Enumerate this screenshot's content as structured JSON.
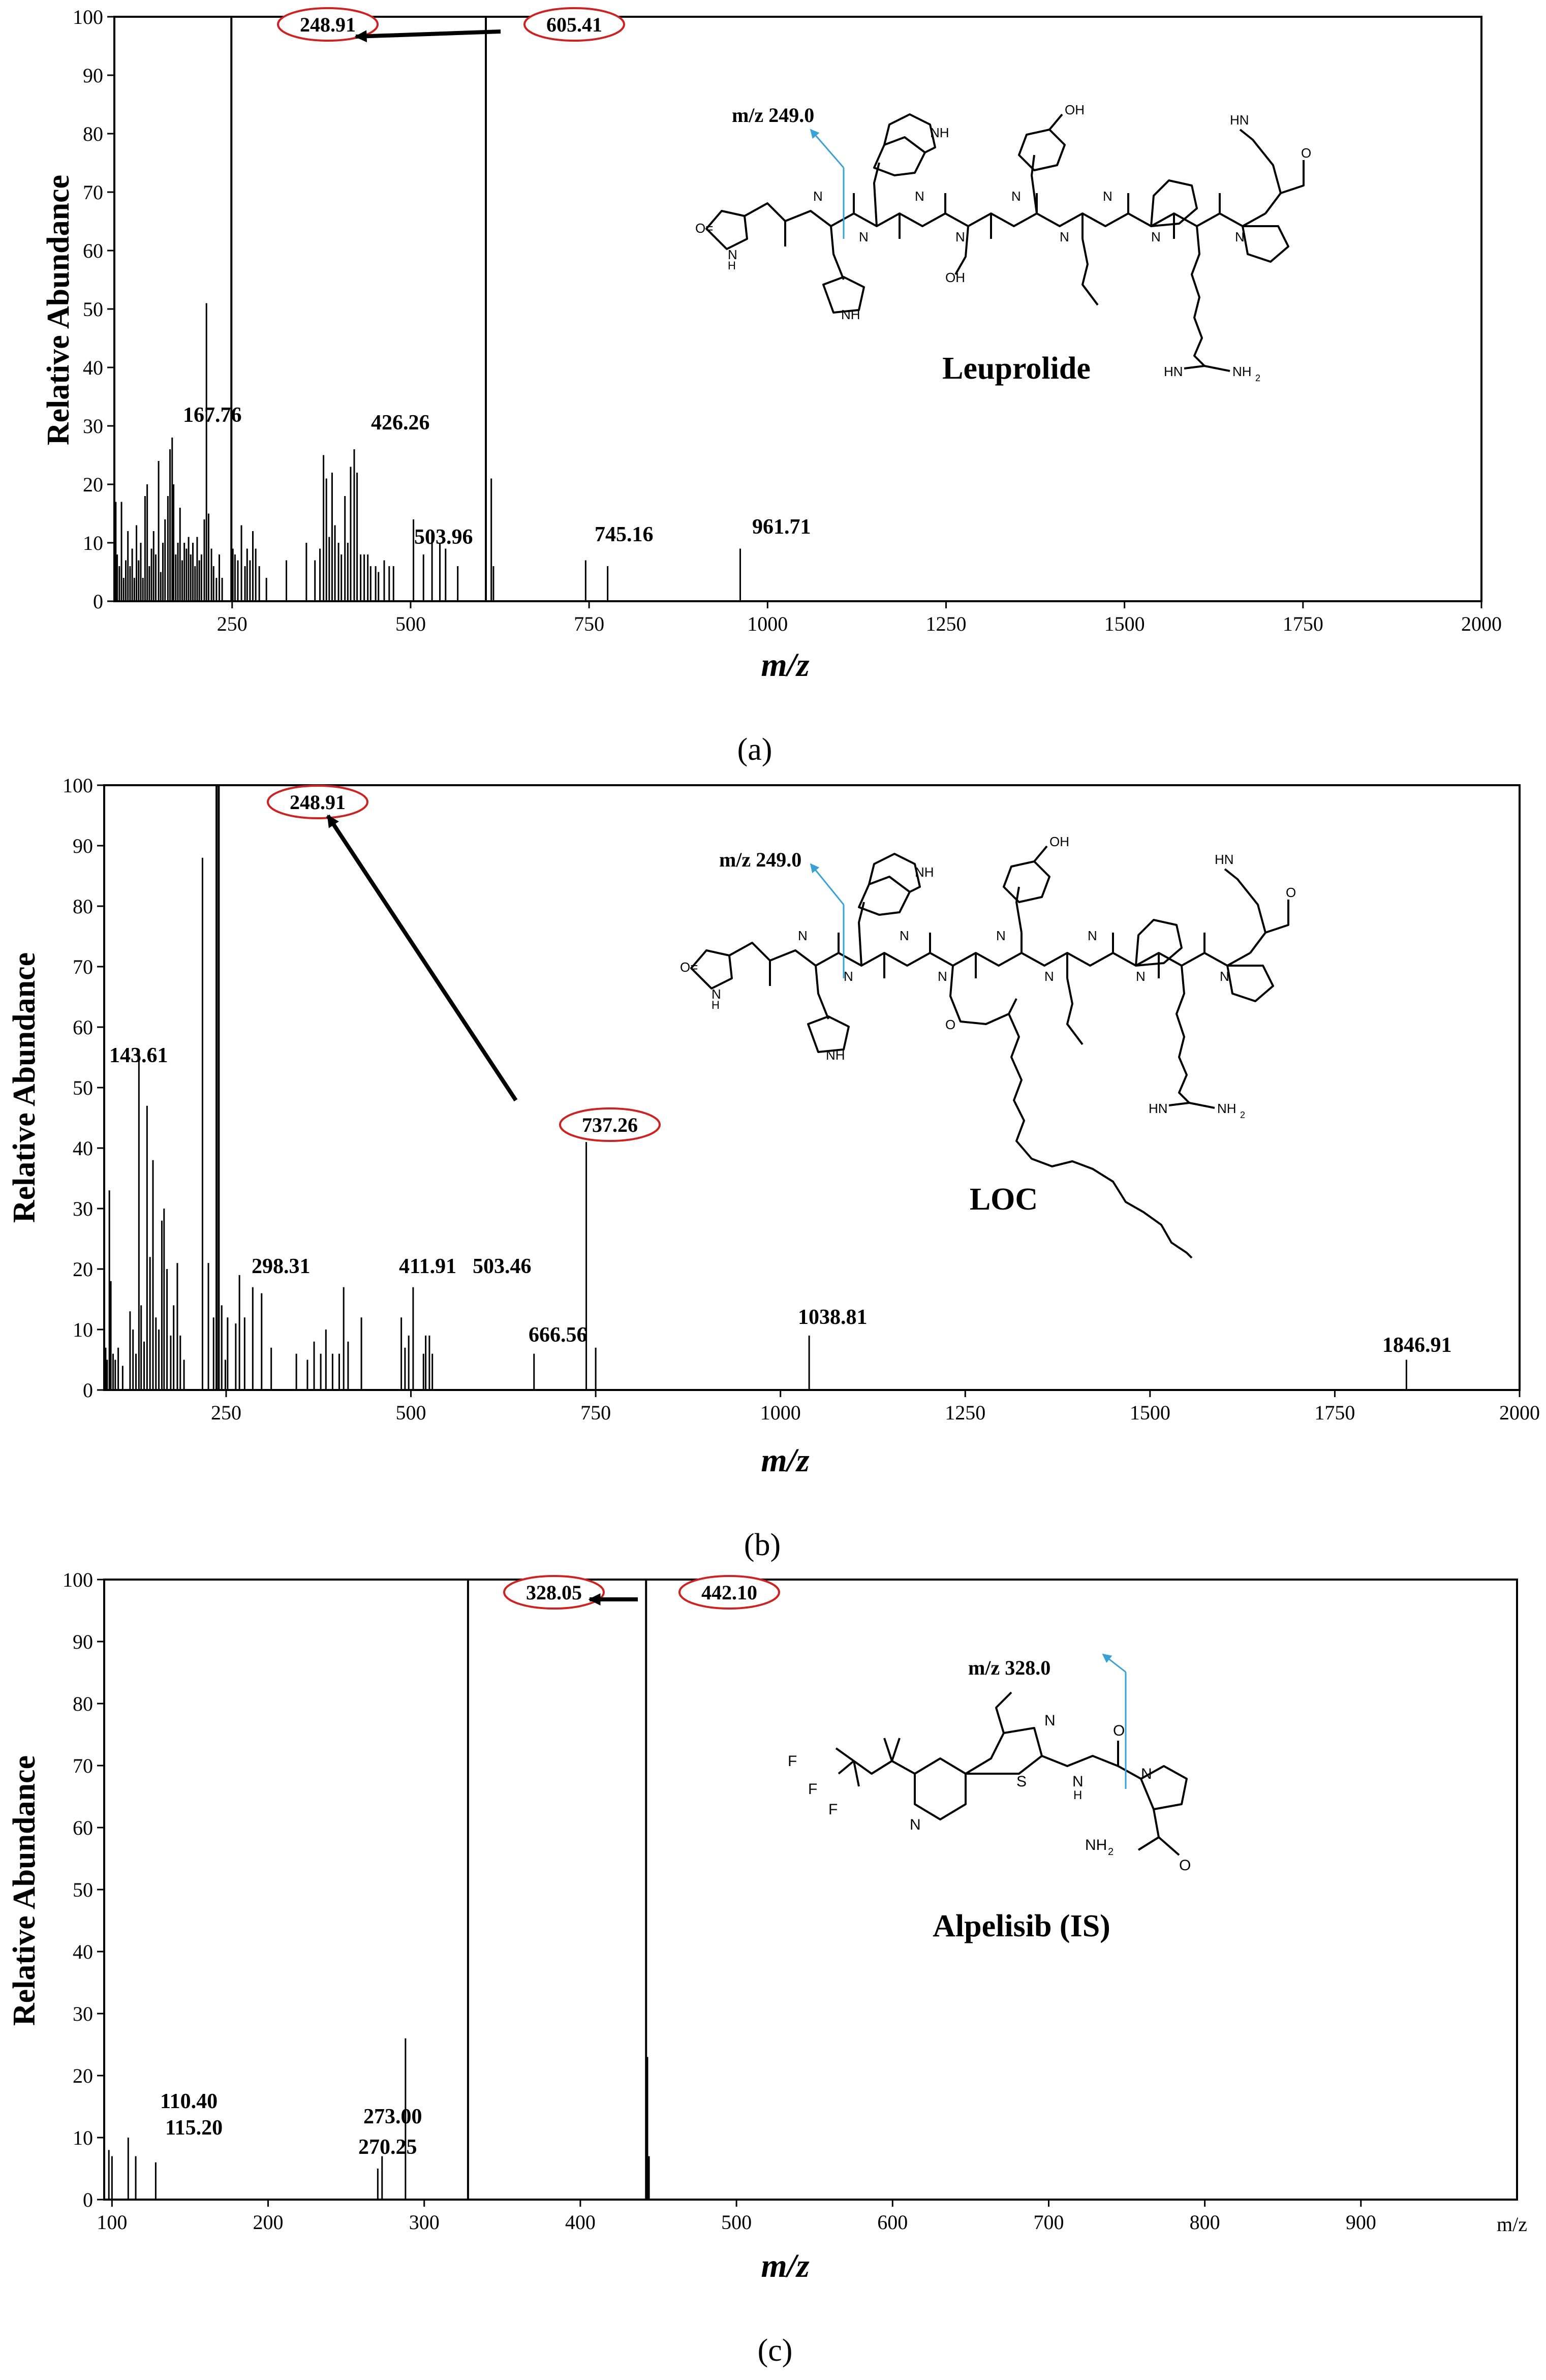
{
  "figure": {
    "panels": [
      {
        "id": "a",
        "caption": "(a)",
        "compound": "Leuprolide",
        "fragment_label": "m/z 249.0"
      },
      {
        "id": "b",
        "caption": "(b)",
        "compound": "LOC",
        "fragment_label": "m/z 249.0"
      },
      {
        "id": "c",
        "caption": "(c)",
        "compound": "Alpelisib (IS)",
        "fragment_label": "m/z 328.0",
        "axis_unit_label": "m/z"
      }
    ]
  },
  "colors": {
    "ink": "#000000",
    "highlight": "#cc2222",
    "fragment_arrow": "#3aa0d8"
  },
  "chart_data": [
    {
      "type": "bar",
      "panel": "a",
      "xlabel": "m/z",
      "ylabel": "Relative Abundance",
      "xlim": [
        85,
        2000
      ],
      "ylim": [
        0,
        100
      ],
      "xticks": [
        250,
        500,
        750,
        1000,
        1250,
        1500,
        1750,
        2000
      ],
      "yticks": [
        0,
        10,
        20,
        30,
        40,
        50,
        60,
        70,
        80,
        90,
        100
      ],
      "peaks": [
        [
          87,
          17
        ],
        [
          89,
          8
        ],
        [
          92,
          6
        ],
        [
          95,
          17
        ],
        [
          98,
          4
        ],
        [
          101,
          7
        ],
        [
          104,
          12
        ],
        [
          107,
          6
        ],
        [
          110,
          9
        ],
        [
          113,
          4
        ],
        [
          116,
          13
        ],
        [
          119,
          7
        ],
        [
          122,
          10
        ],
        [
          125,
          4
        ],
        [
          128,
          18
        ],
        [
          131,
          20
        ],
        [
          134,
          6
        ],
        [
          137,
          9
        ],
        [
          140,
          12
        ],
        [
          143,
          8
        ],
        [
          147,
          24
        ],
        [
          150,
          5
        ],
        [
          153,
          10
        ],
        [
          156,
          14
        ],
        [
          160,
          18
        ],
        [
          163,
          26
        ],
        [
          166,
          28
        ],
        [
          168,
          20
        ],
        [
          171,
          8
        ],
        [
          174,
          10
        ],
        [
          177,
          16
        ],
        [
          180,
          7
        ],
        [
          183,
          10
        ],
        [
          186,
          9
        ],
        [
          189,
          11
        ],
        [
          192,
          8
        ],
        [
          195,
          10
        ],
        [
          198,
          6
        ],
        [
          201,
          11
        ],
        [
          204,
          7
        ],
        [
          207,
          8
        ],
        [
          211,
          14
        ],
        [
          214,
          51
        ],
        [
          217,
          15
        ],
        [
          221,
          9
        ],
        [
          224,
          6
        ],
        [
          228,
          4
        ],
        [
          232,
          8
        ],
        [
          236,
          4
        ],
        [
          248.91,
          100
        ],
        [
          251,
          9
        ],
        [
          254,
          8
        ],
        [
          258,
          7
        ],
        [
          263,
          13
        ],
        [
          268,
          6
        ],
        [
          271,
          9
        ],
        [
          275,
          7
        ],
        [
          279,
          12
        ],
        [
          283,
          9
        ],
        [
          288,
          6
        ],
        [
          298,
          4
        ],
        [
          326,
          7
        ],
        [
          354,
          10
        ],
        [
          366,
          7
        ],
        [
          373,
          9
        ],
        [
          378,
          25
        ],
        [
          382,
          21
        ],
        [
          386,
          11
        ],
        [
          390,
          22
        ],
        [
          394,
          13
        ],
        [
          399,
          10
        ],
        [
          403,
          8
        ],
        [
          408,
          18
        ],
        [
          412,
          10
        ],
        [
          416,
          23
        ],
        [
          421,
          26
        ],
        [
          425,
          22
        ],
        [
          430,
          8
        ],
        [
          435,
          8
        ],
        [
          440,
          8
        ],
        [
          444,
          6
        ],
        [
          451,
          6
        ],
        [
          455,
          5
        ],
        [
          463,
          7
        ],
        [
          470,
          6
        ],
        [
          476,
          6
        ],
        [
          504,
          14
        ],
        [
          518,
          8
        ],
        [
          530,
          12
        ],
        [
          541,
          10
        ],
        [
          549,
          9
        ],
        [
          566,
          6
        ],
        [
          605.41,
          100
        ],
        [
          613,
          21
        ],
        [
          616,
          6
        ],
        [
          745.16,
          7
        ],
        [
          776,
          6
        ],
        [
          961.71,
          9
        ]
      ],
      "labeled_peaks": [
        {
          "mz": 167.76,
          "label": "167.76"
        },
        {
          "mz": 426.26,
          "label": "426.26"
        },
        {
          "mz": 503.96,
          "label": "503.96"
        },
        {
          "mz": 745.16,
          "label": "745.16"
        },
        {
          "mz": 961.71,
          "label": "961.71"
        }
      ],
      "highlighted_peaks": [
        {
          "mz": 248.91,
          "label": "248.91"
        },
        {
          "mz": 605.41,
          "label": "605.41"
        }
      ],
      "transition": {
        "from": "605.41",
        "to": "248.91"
      }
    },
    {
      "type": "bar",
      "panel": "b",
      "xlabel": "m/z",
      "ylabel": "Relative Abundance",
      "xlim": [
        85,
        2000
      ],
      "ylim": [
        0,
        100
      ],
      "xticks": [
        250,
        500,
        750,
        1000,
        1250,
        1500,
        1750,
        2000
      ],
      "yticks": [
        0,
        10,
        20,
        30,
        40,
        50,
        60,
        70,
        80,
        90,
        100
      ],
      "peaks": [
        [
          87,
          7
        ],
        [
          89,
          5
        ],
        [
          92,
          33
        ],
        [
          94,
          18
        ],
        [
          97,
          6
        ],
        [
          100,
          5
        ],
        [
          104,
          7
        ],
        [
          110,
          4
        ],
        [
          120,
          13
        ],
        [
          124,
          10
        ],
        [
          128,
          6
        ],
        [
          132,
          56
        ],
        [
          135,
          14
        ],
        [
          139,
          8
        ],
        [
          143,
          47
        ],
        [
          147,
          22
        ],
        [
          151,
          38
        ],
        [
          155,
          12
        ],
        [
          159,
          10
        ],
        [
          163,
          28
        ],
        [
          166,
          30
        ],
        [
          170,
          20
        ],
        [
          175,
          9
        ],
        [
          179,
          14
        ],
        [
          184,
          21
        ],
        [
          188,
          9
        ],
        [
          193,
          5
        ],
        [
          218,
          88
        ],
        [
          226,
          21
        ],
        [
          233,
          12
        ],
        [
          237,
          100
        ],
        [
          240,
          100
        ],
        [
          244,
          14
        ],
        [
          248.91,
          5
        ],
        [
          252,
          12
        ],
        [
          263,
          11
        ],
        [
          268,
          19
        ],
        [
          275,
          12
        ],
        [
          286,
          17
        ],
        [
          298,
          16
        ],
        [
          311,
          7
        ],
        [
          345,
          6
        ],
        [
          360,
          5
        ],
        [
          369,
          8
        ],
        [
          378,
          6
        ],
        [
          385,
          10
        ],
        [
          394,
          6
        ],
        [
          403,
          6
        ],
        [
          409,
          17
        ],
        [
          415,
          8
        ],
        [
          433,
          12
        ],
        [
          487,
          12
        ],
        [
          492,
          7
        ],
        [
          497,
          9
        ],
        [
          503,
          17
        ],
        [
          517,
          6
        ],
        [
          520,
          9
        ],
        [
          525,
          9
        ],
        [
          529,
          6
        ],
        [
          666.56,
          6
        ],
        [
          737.26,
          41
        ],
        [
          750,
          7
        ],
        [
          1038.81,
          9
        ],
        [
          1846.91,
          5
        ]
      ],
      "labeled_peaks": [
        {
          "mz": 143.61,
          "label": "143.61"
        },
        {
          "mz": 298.31,
          "label": "298.31"
        },
        {
          "mz": 411.91,
          "label": "411.91"
        },
        {
          "mz": 503.46,
          "label": "503.46"
        },
        {
          "mz": 666.56,
          "label": "666.56"
        },
        {
          "mz": 1038.81,
          "label": "1038.81"
        },
        {
          "mz": 1846.91,
          "label": "1846.91"
        }
      ],
      "highlighted_peaks": [
        {
          "mz": 248.91,
          "label": "248.91"
        },
        {
          "mz": 737.26,
          "label": "737.26"
        }
      ],
      "transition": {
        "from": "737.26",
        "to": "248.91"
      }
    },
    {
      "type": "bar",
      "panel": "c",
      "xlabel": "m/z",
      "ylabel": "Relative Abundance",
      "xlim": [
        95,
        1000
      ],
      "ylim": [
        0,
        100
      ],
      "xticks": [
        100,
        200,
        300,
        400,
        500,
        600,
        700,
        800,
        900
      ],
      "yticks": [
        0,
        10,
        20,
        30,
        40,
        50,
        60,
        70,
        80,
        90,
        100
      ],
      "peaks": [
        [
          98,
          8
        ],
        [
          100,
          7
        ],
        [
          110.4,
          10
        ],
        [
          115.2,
          7
        ],
        [
          128,
          6
        ],
        [
          270.25,
          5
        ],
        [
          273.0,
          7
        ],
        [
          288,
          26
        ],
        [
          328.05,
          100
        ],
        [
          442.1,
          100
        ],
        [
          443,
          23
        ],
        [
          444,
          7
        ]
      ],
      "labeled_peaks": [
        {
          "mz": 110.4,
          "label": "110.40"
        },
        {
          "mz": 115.2,
          "label": "115.20"
        },
        {
          "mz": 273.0,
          "label": "273.00"
        },
        {
          "mz": 270.25,
          "label": "270.25"
        }
      ],
      "highlighted_peaks": [
        {
          "mz": 328.05,
          "label": "328.05"
        },
        {
          "mz": 442.1,
          "label": "442.10"
        }
      ],
      "transition": {
        "from": "442.10",
        "to": "328.05"
      }
    }
  ]
}
